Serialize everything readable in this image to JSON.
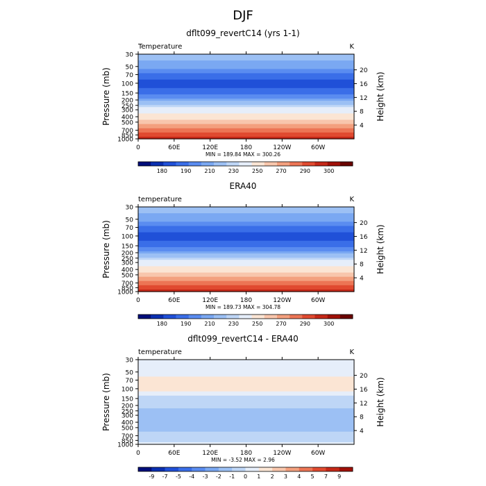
{
  "figure_title": "DJF",
  "chart_data": [
    {
      "type": "heatmap",
      "title": "dflt099_revertC14 (yrs 1-1)",
      "variable_label": "Temperature",
      "units_label": "K",
      "ylabel": "Pressure (mb)",
      "ylabel_right": "Height (km)",
      "x_ticks": [
        "0",
        "60E",
        "120E",
        "180",
        "120W",
        "60W"
      ],
      "x_values": [
        0,
        60,
        120,
        180,
        240,
        300
      ],
      "xlim": [
        0,
        360
      ],
      "pressure_ticks": [
        "30",
        "50",
        "70",
        "100",
        "150",
        "200",
        "250",
        "300",
        "400",
        "500",
        "700",
        "850",
        "1000"
      ],
      "pressure_values": [
        30,
        50,
        70,
        100,
        150,
        200,
        250,
        300,
        400,
        500,
        700,
        850,
        1000
      ],
      "ylim_mb": [
        30,
        1000
      ],
      "height_ticks": [
        "4",
        "8",
        "12",
        "16",
        "20"
      ],
      "height_values": [
        4,
        8,
        12,
        16,
        20
      ],
      "stats_text": "MIN = 189.84   MAX = 300.26",
      "min": 189.84,
      "max": 300.26,
      "colorbar_labels": [
        "180",
        "190",
        "210",
        "230",
        "250",
        "270",
        "290",
        "300"
      ],
      "colorbar_colors": [
        "#000e7a",
        "#0a2fb0",
        "#2050d8",
        "#3a6ee8",
        "#5a8cf0",
        "#7aa8f2",
        "#9cc0f4",
        "#bed6f6",
        "#e6eefa",
        "#fbe5d4",
        "#f8c6ac",
        "#f3a07e",
        "#ec7555",
        "#e04a30",
        "#c52818",
        "#a01008",
        "#6a0400"
      ],
      "profile": [
        [
          30,
          6
        ],
        [
          50,
          5
        ],
        [
          70,
          3
        ],
        [
          100,
          2
        ],
        [
          150,
          3
        ],
        [
          200,
          5
        ],
        [
          250,
          7
        ],
        [
          300,
          8
        ],
        [
          400,
          9
        ],
        [
          500,
          10
        ],
        [
          700,
          12
        ],
        [
          850,
          13
        ],
        [
          1000,
          14
        ]
      ]
    },
    {
      "type": "heatmap",
      "title": "ERA40",
      "variable_label": "temperature",
      "units_label": "K",
      "ylabel": "Pressure (mb)",
      "ylabel_right": "Height (km)",
      "x_ticks": [
        "0",
        "60E",
        "120E",
        "180",
        "120W",
        "60W"
      ],
      "x_values": [
        0,
        60,
        120,
        180,
        240,
        300
      ],
      "xlim": [
        0,
        360
      ],
      "pressure_ticks": [
        "30",
        "50",
        "70",
        "100",
        "150",
        "200",
        "250",
        "300",
        "400",
        "500",
        "700",
        "850",
        "1000"
      ],
      "pressure_values": [
        30,
        50,
        70,
        100,
        150,
        200,
        250,
        300,
        400,
        500,
        700,
        850,
        1000
      ],
      "ylim_mb": [
        30,
        1000
      ],
      "height_ticks": [
        "4",
        "8",
        "12",
        "16",
        "20"
      ],
      "height_values": [
        4,
        8,
        12,
        16,
        20
      ],
      "stats_text": "MIN = 189.73   MAX = 304.78",
      "min": 189.73,
      "max": 304.78,
      "colorbar_labels": [
        "180",
        "190",
        "210",
        "230",
        "250",
        "270",
        "290",
        "300"
      ],
      "colorbar_colors": [
        "#000e7a",
        "#0a2fb0",
        "#2050d8",
        "#3a6ee8",
        "#5a8cf0",
        "#7aa8f2",
        "#9cc0f4",
        "#bed6f6",
        "#e6eefa",
        "#fbe5d4",
        "#f8c6ac",
        "#f3a07e",
        "#ec7555",
        "#e04a30",
        "#c52818",
        "#a01008",
        "#6a0400"
      ],
      "profile": [
        [
          30,
          6
        ],
        [
          50,
          5
        ],
        [
          70,
          3
        ],
        [
          100,
          2
        ],
        [
          150,
          3
        ],
        [
          200,
          5
        ],
        [
          250,
          7
        ],
        [
          300,
          8
        ],
        [
          400,
          9
        ],
        [
          500,
          10
        ],
        [
          700,
          12
        ],
        [
          850,
          13
        ],
        [
          1000,
          15
        ]
      ]
    },
    {
      "type": "heatmap",
      "title": "dflt099_revertC14 - ERA40",
      "variable_label": "temperature",
      "units_label": "K",
      "ylabel": "Pressure (mb)",
      "ylabel_right": "Height (km)",
      "x_ticks": [
        "0",
        "60E",
        "120E",
        "180",
        "120W",
        "60W"
      ],
      "x_values": [
        0,
        60,
        120,
        180,
        240,
        300
      ],
      "xlim": [
        0,
        360
      ],
      "pressure_ticks": [
        "30",
        "50",
        "70",
        "100",
        "150",
        "200",
        "250",
        "300",
        "400",
        "500",
        "700",
        "850",
        "1000"
      ],
      "pressure_values": [
        30,
        50,
        70,
        100,
        150,
        200,
        250,
        300,
        400,
        500,
        700,
        850,
        1000
      ],
      "ylim_mb": [
        30,
        1000
      ],
      "height_ticks": [
        "4",
        "8",
        "12",
        "16",
        "20"
      ],
      "height_values": [
        4,
        8,
        12,
        16,
        20
      ],
      "stats_text": "MIN =  -3.52   MAX =   2.96",
      "min": -3.52,
      "max": 2.96,
      "colorbar_labels": [
        "-9",
        "-7",
        "-5",
        "-4",
        "-3",
        "-2",
        "-1",
        "0",
        "1",
        "2",
        "3",
        "4",
        "5",
        "7",
        "9"
      ],
      "colorbar_colors": [
        "#000e7a",
        "#0a2fb0",
        "#2050d8",
        "#3a6ee8",
        "#5a8cf0",
        "#7aa8f2",
        "#9cc0f4",
        "#bed6f6",
        "#e6eefa",
        "#fbe5d4",
        "#f8c6ac",
        "#f3a07e",
        "#ec7555",
        "#e04a30",
        "#c52818",
        "#a01008"
      ],
      "profile": [
        [
          30,
          8
        ],
        [
          50,
          8
        ],
        [
          70,
          9
        ],
        [
          100,
          9
        ],
        [
          150,
          7
        ],
        [
          200,
          7
        ],
        [
          250,
          6
        ],
        [
          300,
          6
        ],
        [
          400,
          6
        ],
        [
          500,
          6
        ],
        [
          700,
          7
        ],
        [
          850,
          7
        ],
        [
          1000,
          8
        ]
      ]
    }
  ]
}
